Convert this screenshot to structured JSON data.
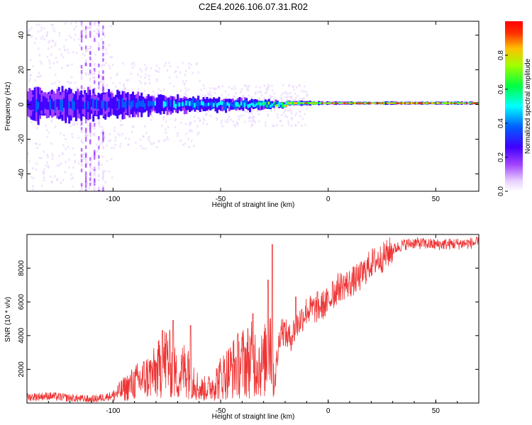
{
  "title": "C2E4.2026.106.07.31.R02",
  "chart_data": [
    {
      "type": "heatmap",
      "xlabel": "Height of straight line (km)",
      "ylabel": "Frequency (Hz)",
      "xlim": [
        -140,
        70
      ],
      "ylim": [
        -50,
        48
      ],
      "xticks": [
        -100,
        -50,
        0,
        50
      ],
      "yticks": [
        -40,
        -20,
        0,
        20,
        40
      ],
      "colorbar": {
        "label": "Normalized spectral amplitude",
        "range": [
          0,
          1
        ],
        "ticks": [
          "0.0",
          "0.2",
          "0.4",
          "0.6",
          "0.8"
        ],
        "colormap": [
          "#e8d0ff",
          "#8000ff",
          "#0000ff",
          "#00ffff",
          "#00ff00",
          "#ffff00",
          "#ff8000",
          "#ff0000"
        ]
      },
      "band_envelope": [
        {
          "x": -140,
          "halfwidth": 9,
          "level": 0.35
        },
        {
          "x": -120,
          "halfwidth": 8,
          "level": 0.4
        },
        {
          "x": -100,
          "halfwidth": 7,
          "level": 0.4
        },
        {
          "x": -80,
          "halfwidth": 5,
          "level": 0.45
        },
        {
          "x": -60,
          "halfwidth": 3.5,
          "level": 0.5
        },
        {
          "x": -40,
          "halfwidth": 3,
          "level": 0.55
        },
        {
          "x": -20,
          "halfwidth": 1.5,
          "level": 0.75
        },
        {
          "x": 0,
          "halfwidth": 0.8,
          "level": 0.95
        },
        {
          "x": 70,
          "halfwidth": 0.8,
          "level": 0.95
        }
      ]
    },
    {
      "type": "line",
      "xlabel": "Height of straight line (km)",
      "ylabel": "SNR (10 * v/v)",
      "xlim": [
        -140,
        70
      ],
      "ylim": [
        0,
        10000
      ],
      "xticks": [
        -100,
        -50,
        0,
        50
      ],
      "yticks": [
        2000,
        4000,
        6000,
        8000
      ],
      "color": "#ee3333",
      "series": [
        {
          "values_xy": [
            [
              -140,
              350
            ],
            [
              -130,
              420
            ],
            [
              -120,
              300
            ],
            [
              -110,
              200
            ],
            [
              -100,
              450
            ],
            [
              -90,
              1200
            ],
            [
              -80,
              1800
            ],
            [
              -75,
              2600
            ],
            [
              -70,
              1500
            ],
            [
              -65,
              2300
            ],
            [
              -60,
              800
            ],
            [
              -55,
              900
            ],
            [
              -50,
              1500
            ],
            [
              -45,
              2000
            ],
            [
              -40,
              2400
            ],
            [
              -35,
              2600
            ],
            [
              -30,
              2200
            ],
            [
              -27,
              4000
            ],
            [
              -25,
              1200
            ],
            [
              -22,
              4500
            ],
            [
              -18,
              3800
            ],
            [
              -15,
              4500
            ],
            [
              -10,
              5500
            ],
            [
              -5,
              5600
            ],
            [
              0,
              6000
            ],
            [
              5,
              6900
            ],
            [
              10,
              7100
            ],
            [
              15,
              7500
            ],
            [
              20,
              8300
            ],
            [
              25,
              8600
            ],
            [
              30,
              9100
            ],
            [
              35,
              9400
            ],
            [
              40,
              9500
            ],
            [
              50,
              9400
            ],
            [
              60,
              9450
            ],
            [
              70,
              9500
            ]
          ]
        }
      ],
      "spikes": [
        {
          "x": -77,
          "y": 4300
        },
        {
          "x": -72,
          "y": 4900
        },
        {
          "x": -64,
          "y": 4600
        },
        {
          "x": -35,
          "y": 5300
        },
        {
          "x": -28,
          "y": 7300
        },
        {
          "x": -26,
          "y": 9400
        },
        {
          "x": -15,
          "y": 6300
        },
        {
          "x": -5,
          "y": 6600
        },
        {
          "x": 2,
          "y": 7200
        }
      ]
    }
  ]
}
